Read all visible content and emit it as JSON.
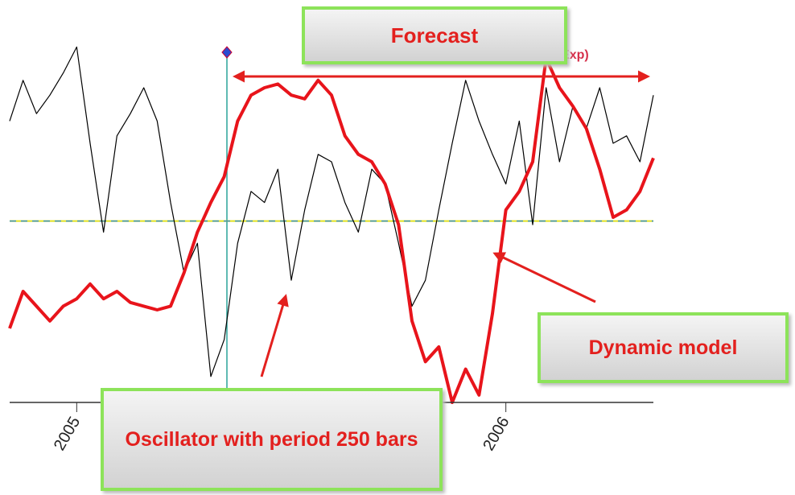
{
  "chart_data": {
    "type": "line",
    "categories": [
      null,
      null,
      null,
      null,
      null,
      "2005",
      null,
      null,
      null,
      null,
      null,
      null,
      null,
      null,
      null,
      null,
      null,
      null,
      null,
      null,
      null,
      null,
      null,
      null,
      null,
      null,
      null,
      null,
      null,
      null,
      null,
      null,
      null,
      null,
      null,
      null,
      null,
      "2006",
      null,
      null,
      null,
      null,
      null,
      null,
      null,
      null,
      null,
      null,
      null
    ],
    "series": [
      {
        "color": "#000000",
        "values": [
          76,
          87,
          78,
          83,
          89,
          96,
          70,
          46,
          72,
          78,
          85,
          76,
          54,
          35,
          43,
          7,
          17,
          43,
          57,
          54,
          63,
          33,
          52,
          67,
          65,
          54,
          46,
          63,
          59,
          43,
          26,
          33,
          52,
          70,
          87,
          76,
          67,
          59,
          76,
          48,
          85,
          65,
          80,
          74,
          85,
          70,
          72,
          65,
          83
        ]
      },
      {
        "color": "#e8141b",
        "values": [
          20,
          30,
          26,
          22,
          26,
          28,
          32,
          28,
          30,
          27,
          26,
          25,
          26,
          35,
          46,
          54,
          61,
          76,
          83,
          85,
          86,
          83,
          82,
          87,
          83,
          72,
          67,
          65,
          59,
          48,
          22,
          11,
          15,
          0,
          9,
          2,
          24,
          52,
          57,
          65,
          93,
          85,
          80,
          74,
          63,
          50,
          52,
          57,
          66
        ]
      }
    ],
    "ylim": [
      0,
      100
    ],
    "reference_line": 49,
    "legend_fragment": "ose,Exp)",
    "annotations": [
      "Forecast",
      "Dynamic model",
      "Oscillator with period 250 bars"
    ]
  }
}
